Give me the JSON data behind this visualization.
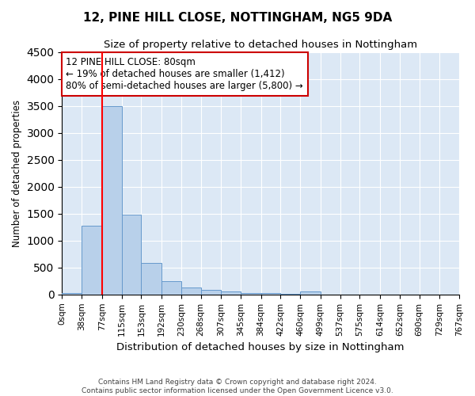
{
  "title": "12, PINE HILL CLOSE, NOTTINGHAM, NG5 9DA",
  "subtitle": "Size of property relative to detached houses in Nottingham",
  "xlabel": "Distribution of detached houses by size in Nottingham",
  "ylabel": "Number of detached properties",
  "bin_edges": [
    0,
    38,
    77,
    115,
    153,
    192,
    230,
    268,
    307,
    345,
    384,
    422,
    460,
    499,
    537,
    575,
    614,
    652,
    690,
    729,
    767
  ],
  "bar_heights": [
    30,
    1270,
    3500,
    1480,
    580,
    250,
    130,
    80,
    50,
    25,
    20,
    15,
    50,
    0,
    0,
    0,
    0,
    0,
    0,
    0
  ],
  "bar_color": "#b8d0ea",
  "bar_edgecolor": "#6699cc",
  "red_line_x": 77,
  "ylim": [
    0,
    4500
  ],
  "annotation_text": "12 PINE HILL CLOSE: 80sqm\n← 19% of detached houses are smaller (1,412)\n80% of semi-detached houses are larger (5,800) →",
  "annotation_box_color": "#ffffff",
  "annotation_box_edgecolor": "#cc0000",
  "footer_line1": "Contains HM Land Registry data © Crown copyright and database right 2024.",
  "footer_line2": "Contains public sector information licensed under the Open Government Licence v3.0.",
  "background_color": "#ffffff",
  "plot_background_color": "#dce8f5",
  "grid_color": "#ffffff",
  "tick_labels": [
    "0sqm",
    "38sqm",
    "77sqm",
    "115sqm",
    "153sqm",
    "192sqm",
    "230sqm",
    "268sqm",
    "307sqm",
    "345sqm",
    "384sqm",
    "422sqm",
    "460sqm",
    "499sqm",
    "537sqm",
    "575sqm",
    "614sqm",
    "652sqm",
    "690sqm",
    "729sqm",
    "767sqm"
  ],
  "title_fontsize": 11,
  "subtitle_fontsize": 9.5,
  "ylabel_fontsize": 8.5,
  "xlabel_fontsize": 9.5,
  "tick_fontsize": 7.5,
  "annotation_fontsize": 8.5,
  "footer_fontsize": 6.5
}
